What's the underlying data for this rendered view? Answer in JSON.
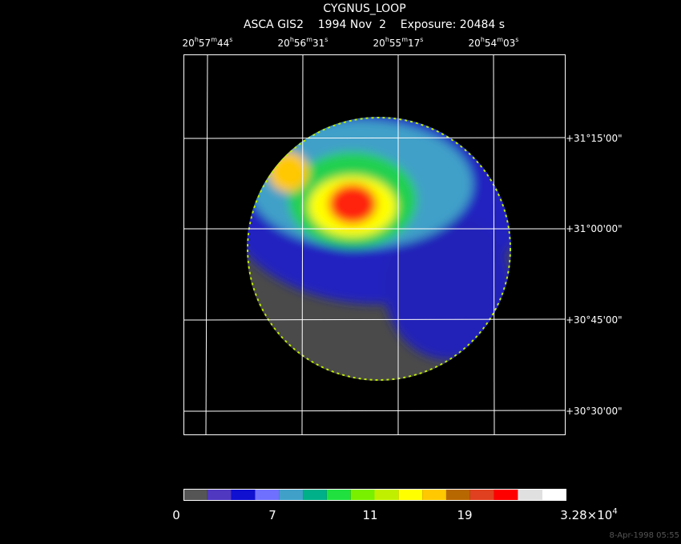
{
  "header": {
    "title": "CYGNUS_LOOP",
    "subtitle": "ASCA GIS2    1994 Nov  2    Exposure: 20484 s"
  },
  "ra_axis": {
    "units": [
      "h",
      "m",
      "s"
    ],
    "labels": [
      [
        "20",
        "57",
        "44"
      ],
      [
        "20",
        "56",
        "31"
      ],
      [
        "20",
        "55",
        "17"
      ],
      [
        "20",
        "54",
        "03"
      ]
    ]
  },
  "dec_axis": {
    "labels": [
      "+31°15'00\"",
      "+31°00'00\"",
      "+30°45'00\"",
      "+30°30'00\""
    ]
  },
  "colorbar": {
    "colors": [
      "#555555",
      "#5038c0",
      "#1010d0",
      "#7070ff",
      "#40a0c8",
      "#00b088",
      "#20e040",
      "#78f000",
      "#c0f000",
      "#ffff00",
      "#ffc800",
      "#b86800",
      "#e04020",
      "#ff0000",
      "#e0e0e0",
      "#ffffff"
    ],
    "labels": [
      "0",
      "7",
      "11",
      "19"
    ],
    "max_label": {
      "mantissa": "3.28×10",
      "exponent": "4"
    }
  },
  "footer": {
    "timestamp": "8-Apr-1998 05:55"
  }
}
